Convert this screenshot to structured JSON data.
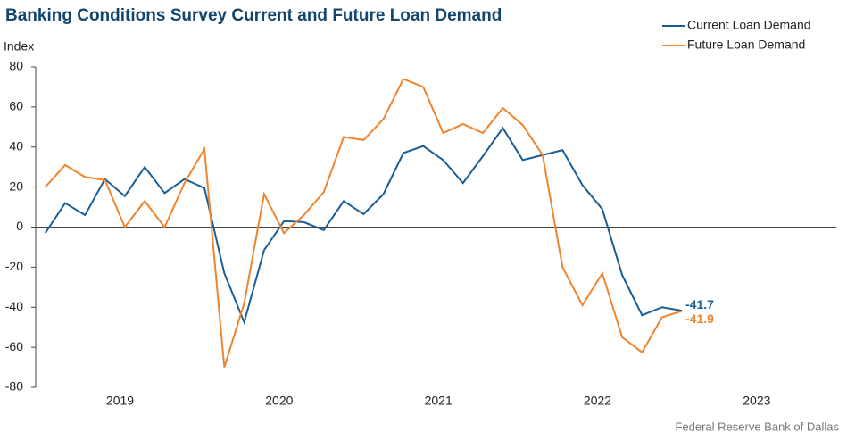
{
  "chart_data": {
    "type": "line",
    "title": "Banking Conditions Survey Current and Future Loan Demand",
    "y_label": "Index",
    "source": "Federal Reserve Bank of Dallas",
    "x": [
      2019.03,
      2019.155,
      2019.28,
      2019.405,
      2019.53,
      2019.655,
      2019.78,
      2019.905,
      2020.03,
      2020.155,
      2020.28,
      2020.405,
      2020.53,
      2020.655,
      2020.78,
      2020.905,
      2021.03,
      2021.155,
      2021.28,
      2021.405,
      2021.53,
      2021.655,
      2021.78,
      2021.905,
      2022.03,
      2022.155,
      2022.28,
      2022.405,
      2022.53,
      2022.655,
      2022.78,
      2022.905,
      2023.03
    ],
    "series": [
      {
        "name": "Current Loan Demand",
        "color": "#1a5e96",
        "values": [
          -3,
          12,
          6,
          24,
          15.5,
          30,
          17,
          24,
          19.5,
          -23,
          -47.5,
          -11.5,
          3,
          2.5,
          -1.5,
          13,
          6.5,
          16.5,
          37,
          40.5,
          33.5,
          22,
          35.5,
          49.5,
          33.5,
          36,
          38.5,
          21,
          9,
          -24,
          -44,
          -40,
          -41.7
        ]
      },
      {
        "name": "Future Loan Demand",
        "color": "#f0842c",
        "values": [
          20,
          31,
          25,
          23.5,
          0,
          13,
          0,
          22,
          39,
          -70,
          -38,
          16.5,
          -3,
          6,
          17.5,
          45,
          43.5,
          54,
          74,
          70,
          47,
          51.5,
          47,
          59.5,
          51,
          36,
          -20,
          -39,
          -23,
          -55,
          -62.5,
          -45,
          -41.9
        ]
      }
    ],
    "xlim": [
      2018.97,
      2024
    ],
    "xticks": [
      {
        "value": 2019.5,
        "label": "2019"
      },
      {
        "value": 2020.5,
        "label": "2020"
      },
      {
        "value": 2021.5,
        "label": "2021"
      },
      {
        "value": 2022.5,
        "label": "2022"
      },
      {
        "value": 2023.5,
        "label": "2023"
      }
    ],
    "ylim": [
      -80,
      80
    ],
    "yticks": [
      -80,
      -60,
      -40,
      -20,
      0,
      20,
      40,
      60,
      80
    ],
    "legend": "top-right",
    "grid": false
  }
}
